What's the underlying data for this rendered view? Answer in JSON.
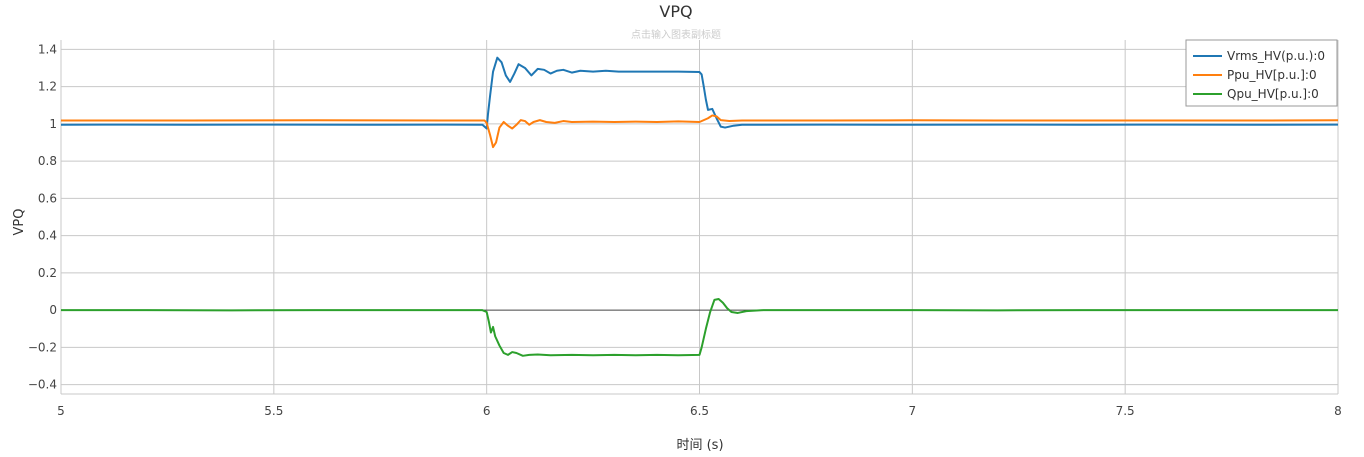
{
  "chart_data": {
    "type": "line",
    "title": "VPQ",
    "subtitle": "点击输入图表副标题",
    "xlabel": "时间 (s)",
    "ylabel": "VPQ",
    "xlim": [
      5,
      8
    ],
    "ylim": [
      -0.45,
      1.45
    ],
    "x_ticks": [
      5,
      5.5,
      6,
      6.5,
      7,
      7.5,
      8
    ],
    "x_tick_labels": [
      "5",
      "5.5",
      "6",
      "6.5",
      "7",
      "7.5",
      "8"
    ],
    "y_ticks": [
      -0.4,
      -0.2,
      0,
      0.2,
      0.4,
      0.6,
      0.8,
      1,
      1.2,
      1.4
    ],
    "y_tick_labels": [
      "−0.4",
      "−0.2",
      "0",
      "0.2",
      "0.4",
      "0.6",
      "0.8",
      "1",
      "1.2",
      "1.4"
    ],
    "grid": true,
    "legend_position": "top-right",
    "series": [
      {
        "name": "Vrms_HV(p.u.):0",
        "color": "#1f77b4",
        "points": [
          [
            5.0,
            0.995
          ],
          [
            5.1,
            0.996
          ],
          [
            5.3,
            0.995
          ],
          [
            5.5,
            0.996
          ],
          [
            5.7,
            0.995
          ],
          [
            5.9,
            0.996
          ],
          [
            5.99,
            0.995
          ],
          [
            6.0,
            0.975
          ],
          [
            6.003,
            1.05
          ],
          [
            6.008,
            1.15
          ],
          [
            6.015,
            1.28
          ],
          [
            6.025,
            1.355
          ],
          [
            6.035,
            1.33
          ],
          [
            6.045,
            1.26
          ],
          [
            6.055,
            1.225
          ],
          [
            6.065,
            1.27
          ],
          [
            6.075,
            1.32
          ],
          [
            6.09,
            1.3
          ],
          [
            6.105,
            1.26
          ],
          [
            6.12,
            1.295
          ],
          [
            6.135,
            1.29
          ],
          [
            6.15,
            1.27
          ],
          [
            6.165,
            1.285
          ],
          [
            6.18,
            1.29
          ],
          [
            6.2,
            1.275
          ],
          [
            6.22,
            1.285
          ],
          [
            6.25,
            1.28
          ],
          [
            6.28,
            1.285
          ],
          [
            6.31,
            1.28
          ],
          [
            6.35,
            1.28
          ],
          [
            6.4,
            1.28
          ],
          [
            6.45,
            1.28
          ],
          [
            6.5,
            1.278
          ],
          [
            6.505,
            1.265
          ],
          [
            6.51,
            1.2
          ],
          [
            6.515,
            1.13
          ],
          [
            6.52,
            1.075
          ],
          [
            6.53,
            1.08
          ],
          [
            6.54,
            1.03
          ],
          [
            6.55,
            0.985
          ],
          [
            6.56,
            0.98
          ],
          [
            6.58,
            0.99
          ],
          [
            6.6,
            0.995
          ],
          [
            6.8,
            0.996
          ],
          [
            7.0,
            0.995
          ],
          [
            7.2,
            0.996
          ],
          [
            7.4,
            0.995
          ],
          [
            7.6,
            0.996
          ],
          [
            7.8,
            0.995
          ],
          [
            8.0,
            0.996
          ]
        ]
      },
      {
        "name": "Ppu_HV[p.u.]:0",
        "color": "#ff7f0e",
        "points": [
          [
            5.0,
            1.018
          ],
          [
            5.3,
            1.018
          ],
          [
            5.6,
            1.019
          ],
          [
            5.9,
            1.018
          ],
          [
            5.995,
            1.018
          ],
          [
            6.0,
            1.005
          ],
          [
            6.008,
            0.94
          ],
          [
            6.015,
            0.875
          ],
          [
            6.022,
            0.9
          ],
          [
            6.03,
            0.98
          ],
          [
            6.04,
            1.01
          ],
          [
            6.05,
            0.99
          ],
          [
            6.06,
            0.975
          ],
          [
            6.07,
            0.995
          ],
          [
            6.08,
            1.02
          ],
          [
            6.09,
            1.015
          ],
          [
            6.1,
            0.995
          ],
          [
            6.11,
            1.01
          ],
          [
            6.125,
            1.02
          ],
          [
            6.14,
            1.01
          ],
          [
            6.16,
            1.005
          ],
          [
            6.18,
            1.015
          ],
          [
            6.2,
            1.01
          ],
          [
            6.25,
            1.012
          ],
          [
            6.3,
            1.01
          ],
          [
            6.35,
            1.012
          ],
          [
            6.4,
            1.01
          ],
          [
            6.45,
            1.013
          ],
          [
            6.5,
            1.01
          ],
          [
            6.51,
            1.02
          ],
          [
            6.52,
            1.03
          ],
          [
            6.53,
            1.045
          ],
          [
            6.54,
            1.04
          ],
          [
            6.55,
            1.02
          ],
          [
            6.57,
            1.015
          ],
          [
            6.6,
            1.018
          ],
          [
            6.8,
            1.018
          ],
          [
            7.0,
            1.019
          ],
          [
            7.2,
            1.018
          ],
          [
            7.4,
            1.018
          ],
          [
            7.6,
            1.018
          ],
          [
            7.8,
            1.018
          ],
          [
            8.0,
            1.019
          ]
        ]
      },
      {
        "name": "Qpu_HV[p.u.]:0",
        "color": "#2ca02c",
        "points": [
          [
            5.0,
            0.0
          ],
          [
            5.2,
            0.0
          ],
          [
            5.4,
            -0.001
          ],
          [
            5.6,
            0.0
          ],
          [
            5.8,
            0.0
          ],
          [
            5.99,
            0.0
          ],
          [
            6.0,
            -0.01
          ],
          [
            6.005,
            -0.06
          ],
          [
            6.01,
            -0.12
          ],
          [
            6.015,
            -0.09
          ],
          [
            6.02,
            -0.14
          ],
          [
            6.03,
            -0.19
          ],
          [
            6.04,
            -0.23
          ],
          [
            6.05,
            -0.24
          ],
          [
            6.06,
            -0.225
          ],
          [
            6.07,
            -0.23
          ],
          [
            6.085,
            -0.245
          ],
          [
            6.1,
            -0.24
          ],
          [
            6.12,
            -0.238
          ],
          [
            6.15,
            -0.242
          ],
          [
            6.2,
            -0.24
          ],
          [
            6.25,
            -0.242
          ],
          [
            6.3,
            -0.24
          ],
          [
            6.35,
            -0.242
          ],
          [
            6.4,
            -0.24
          ],
          [
            6.45,
            -0.242
          ],
          [
            6.5,
            -0.24
          ],
          [
            6.505,
            -0.2
          ],
          [
            6.515,
            -0.1
          ],
          [
            6.525,
            -0.01
          ],
          [
            6.535,
            0.055
          ],
          [
            6.545,
            0.06
          ],
          [
            6.555,
            0.04
          ],
          [
            6.565,
            0.01
          ],
          [
            6.575,
            -0.01
          ],
          [
            6.59,
            -0.015
          ],
          [
            6.61,
            -0.005
          ],
          [
            6.65,
            0.0
          ],
          [
            6.8,
            0.0
          ],
          [
            7.0,
            0.0
          ],
          [
            7.2,
            -0.001
          ],
          [
            7.4,
            0.0
          ],
          [
            7.6,
            0.0
          ],
          [
            7.8,
            0.0
          ],
          [
            8.0,
            0.0
          ]
        ]
      }
    ]
  }
}
